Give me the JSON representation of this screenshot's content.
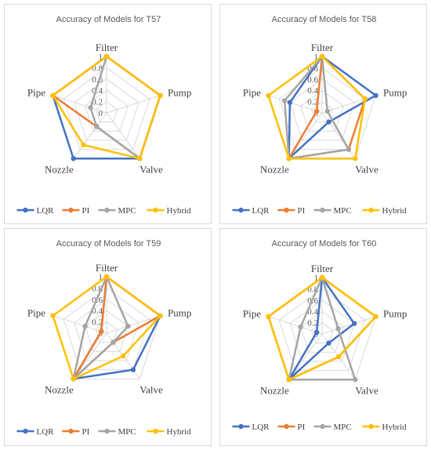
{
  "charts": [
    {
      "title": "Accuracy of Models for T57",
      "categories": [
        "Filter",
        "Pump",
        "Valve",
        "Nozzle",
        "Pipe"
      ],
      "ticks": [
        "0",
        "0.2",
        "0.4",
        "0.6",
        "0.8",
        "1"
      ],
      "series": [
        {
          "name": "LQR",
          "color": "#4472C4",
          "values": [
            1,
            1,
            1,
            1,
            1
          ]
        },
        {
          "name": "PI",
          "color": "#ED7D31",
          "values": [
            1,
            1,
            1,
            0.3,
            1
          ]
        },
        {
          "name": "MPC",
          "color": "#A5A5A5",
          "values": [
            1,
            1,
            1,
            0.3,
            0.3
          ]
        },
        {
          "name": "Hybrid",
          "color": "#FFC000",
          "values": [
            1,
            1,
            1,
            0.7,
            1
          ]
        }
      ]
    },
    {
      "title": "Accuracy of Models for T58",
      "categories": [
        "Filter",
        "Pump",
        "Valve",
        "Nozzle",
        "Pipe"
      ],
      "ticks": [
        "0",
        "0.2",
        "0.4",
        "0.6",
        "0.8",
        "1"
      ],
      "series": [
        {
          "name": "LQR",
          "color": "#4472C4",
          "values": [
            1,
            1,
            0.2,
            1,
            0.6
          ]
        },
        {
          "name": "PI",
          "color": "#ED7D31",
          "values": [
            1,
            0.8,
            0.8,
            1,
            0.1
          ]
        },
        {
          "name": "MPC",
          "color": "#A5A5A5",
          "values": [
            1,
            0.1,
            0.8,
            1,
            0.7
          ]
        },
        {
          "name": "Hybrid",
          "color": "#FFC000",
          "values": [
            1,
            0.8,
            1,
            1,
            1
          ]
        }
      ]
    },
    {
      "title": "Accuracy of Models for T59",
      "categories": [
        "Filter",
        "Pump",
        "Valve",
        "Nozzle",
        "Pipe"
      ],
      "ticks": [
        "0",
        "0.2",
        "0.4",
        "0.6",
        "0.8",
        "1"
      ],
      "series": [
        {
          "name": "LQR",
          "color": "#4472C4",
          "values": [
            1,
            1,
            0.8,
            1,
            0.1
          ]
        },
        {
          "name": "PI",
          "color": "#ED7D31",
          "values": [
            1,
            1,
            0.2,
            1,
            0.1
          ]
        },
        {
          "name": "MPC",
          "color": "#A5A5A5",
          "values": [
            1,
            0.4,
            0.2,
            1,
            0.4
          ]
        },
        {
          "name": "Hybrid",
          "color": "#FFC000",
          "values": [
            1,
            1,
            0.5,
            1,
            1
          ]
        }
      ]
    },
    {
      "title": "Accuracy of Models for T60",
      "categories": [
        "Filter",
        "Pump",
        "Valve",
        "Nozzle",
        "Pipe"
      ],
      "ticks": [
        "0",
        "0.2",
        "0.4",
        "0.6",
        "0.8",
        "1"
      ],
      "series": [
        {
          "name": "LQR",
          "color": "#4472C4",
          "values": [
            1,
            0.6,
            0.2,
            1,
            0.1
          ]
        },
        {
          "name": "PI",
          "color": "#ED7D31",
          "values": [
            1,
            1,
            0.5,
            1,
            1
          ]
        },
        {
          "name": "MPC",
          "color": "#A5A5A5",
          "values": [
            1,
            0.3,
            1,
            1,
            0.4
          ]
        },
        {
          "name": "Hybrid",
          "color": "#FFC000",
          "values": [
            1,
            1,
            0.5,
            1,
            1
          ]
        }
      ]
    }
  ]
}
